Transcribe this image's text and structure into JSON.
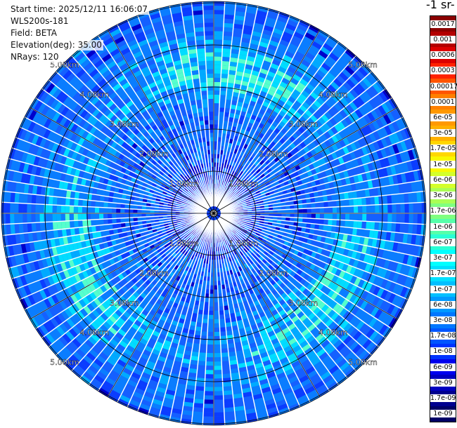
{
  "header": {
    "start_time": "Start time: 2025/12/11 16:06:07",
    "instrument": "WLS200s-181",
    "field": "Field: BETA",
    "elevation": "Elevation(deg): 35.00",
    "nrays": "NRays: 120"
  },
  "colorbar": {
    "title": "-1 sr-",
    "labels": [
      "0.0017",
      "0.001",
      "0.0006",
      "0.0003",
      "0.00017",
      "0.0001",
      "6e-05",
      "3e-05",
      "1.7e-05",
      "1e-05",
      "6e-06",
      "3e-06",
      "1.7e-06",
      "1e-06",
      "6e-07",
      "3e-07",
      "1.7e-07",
      "1e-07",
      "6e-08",
      "3e-08",
      "1.7e-08",
      "1e-08",
      "6e-09",
      "3e-09",
      "1.7e-09",
      "1e-09"
    ],
    "colors": [
      "#8b0000",
      "#b30000",
      "#dd0000",
      "#ff2200",
      "#ff5500",
      "#ff7f00",
      "#ff9900",
      "#ffb000",
      "#ffd700",
      "#f8f800",
      "#d4ff2a",
      "#aaff55",
      "#7fff80",
      "#55ffaa",
      "#2affd4",
      "#00ffff",
      "#00e0ff",
      "#00bfff",
      "#0099ff",
      "#0077ff",
      "#0055ff",
      "#0033ff",
      "#0000ee",
      "#0000c0",
      "#00008f",
      "#000066"
    ]
  },
  "chart_data": {
    "type": "heatmap",
    "projection": "polar (PPI scan)",
    "field": "BETA",
    "elevation_deg": 35.0,
    "n_rays": 120,
    "range_rings_km": [
      1,
      2,
      3,
      4,
      5
    ],
    "range_ring_labels": [
      "1.00km",
      "2.00km",
      "3.00km",
      "4.00km",
      "5.00km"
    ],
    "max_range_km": 5.2,
    "colorscale": "log, 1e-09 to 0.0017",
    "dominant_values": "mostly 1e-08 to 1.7e-07 (blue/cyan), with a ring of higher values (~1e-07 to 3e-07) near 2.5–4 km"
  }
}
